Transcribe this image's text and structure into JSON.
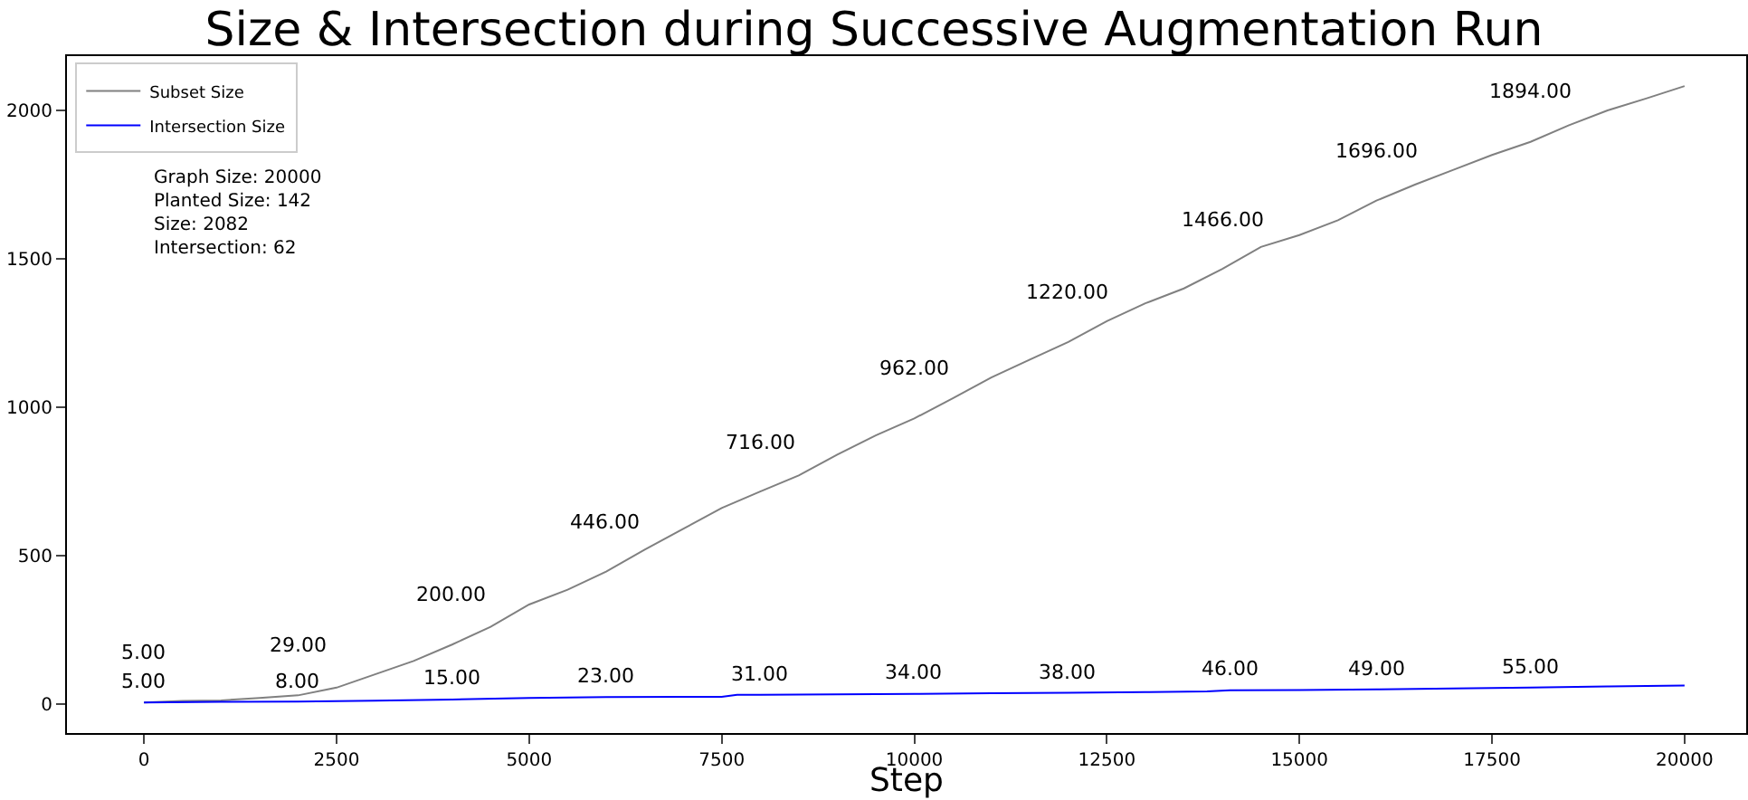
{
  "chart_data": {
    "type": "line",
    "title": "Size & Intersection during Successive Augmentation Run",
    "xlabel": "Step",
    "xlim": [
      -1000,
      20800
    ],
    "xticks": [
      0,
      2500,
      5000,
      7500,
      10000,
      12500,
      15000,
      17500,
      20000
    ],
    "ylim": [
      -98,
      2183
    ],
    "yticks": [
      0,
      500,
      1000,
      1500,
      2000
    ],
    "legend": "top left",
    "marker": "none",
    "line_style": "solid",
    "annotations": [
      "Graph Size: 20000\nPlanted Size: 142\nSize: 2082\nIntersection: 62"
    ],
    "series": [
      {
        "name": "Subset Size",
        "color": "#808080",
        "x": [
          0,
          500,
          1000,
          1500,
          2000,
          2500,
          3000,
          3500,
          4000,
          4500,
          5000,
          5500,
          6000,
          6500,
          7000,
          7500,
          8000,
          8500,
          9000,
          9500,
          10000,
          10500,
          11000,
          11500,
          12000,
          12500,
          13000,
          13500,
          14000,
          14500,
          15000,
          15500,
          16000,
          16500,
          17000,
          17500,
          18000,
          18500,
          19000,
          19500,
          20000
        ],
        "values": [
          5,
          10,
          12,
          20,
          29,
          55,
          100,
          145,
          200,
          260,
          335,
          385,
          446,
          520,
          590,
          660,
          716,
          770,
          840,
          905,
          962,
          1030,
          1100,
          1160,
          1220,
          1290,
          1350,
          1400,
          1466,
          1540,
          1580,
          1630,
          1696,
          1750,
          1800,
          1850,
          1894,
          1950,
          2000,
          2040,
          2082
        ],
        "value_labels": [
          "5.00",
          null,
          null,
          null,
          "29.00",
          null,
          null,
          null,
          "200.00",
          null,
          null,
          null,
          "446.00",
          null,
          null,
          null,
          "716.00",
          null,
          null,
          null,
          "962.00",
          null,
          null,
          null,
          "1220.00",
          null,
          null,
          null,
          "1466.00",
          null,
          null,
          null,
          "1696.00",
          null,
          null,
          null,
          "1894.00",
          null,
          null,
          null,
          null
        ]
      },
      {
        "name": "Intersection Size",
        "color": "#0000ff",
        "x": [
          0,
          1000,
          2000,
          3000,
          4000,
          5000,
          6000,
          7000,
          7500,
          7700,
          8000,
          9000,
          10000,
          11000,
          12000,
          13000,
          13800,
          14100,
          15000,
          16000,
          17000,
          18000,
          19000,
          20000
        ],
        "values": [
          5,
          7,
          8,
          11,
          15,
          20,
          23,
          24,
          24,
          31,
          31,
          32,
          34,
          36,
          38,
          40,
          42,
          46,
          47,
          49,
          52,
          55,
          59,
          62
        ],
        "value_labels": [
          "5.00",
          null,
          "8.00",
          null,
          "15.00",
          null,
          "23.00",
          null,
          null,
          null,
          "31.00",
          null,
          "34.00",
          null,
          "38.00",
          null,
          null,
          "46.00",
          null,
          "49.00",
          null,
          "55.00",
          null,
          null
        ]
      }
    ]
  }
}
